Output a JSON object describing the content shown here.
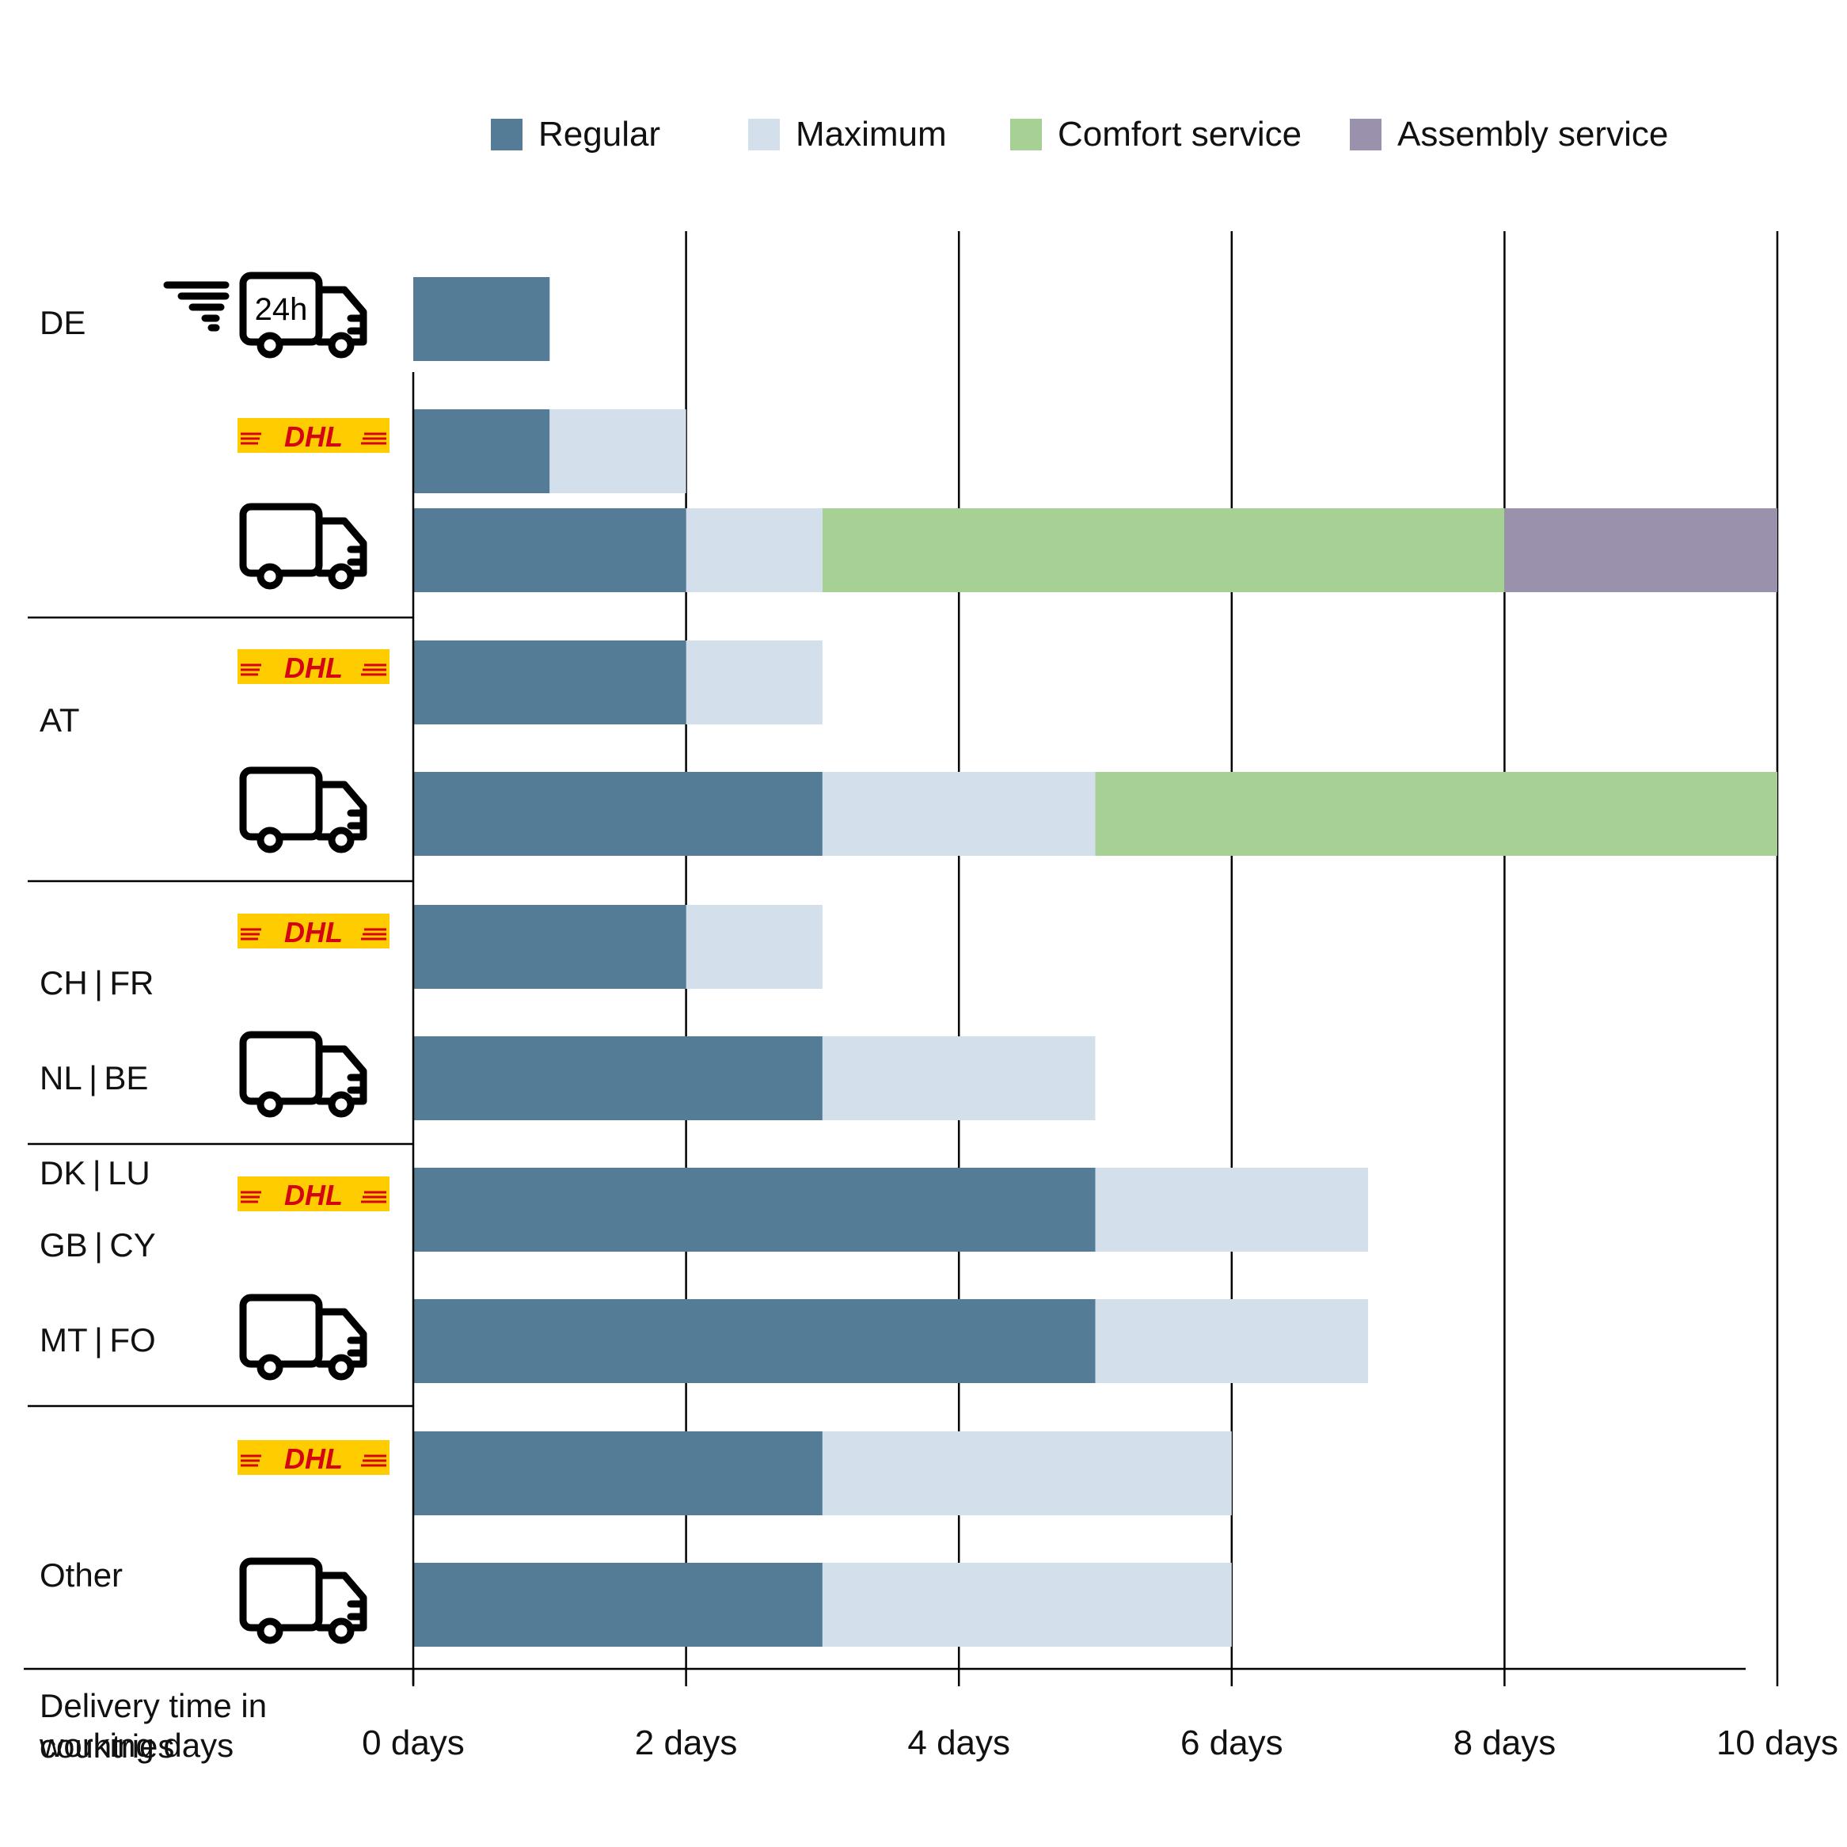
{
  "legend": {
    "regular": "Regular",
    "maximum": "Maximum",
    "comfort": "Comfort service",
    "assembly": "Assembly service"
  },
  "colors": {
    "regular": "#547c97",
    "maximum": "#d3e0ec",
    "comfort": "#a7d194",
    "assembly": "#9a91ad",
    "dhl_yellow": "#ffcc00",
    "dhl_red": "#d40511"
  },
  "groups": [
    {
      "label_lines": [
        "DE"
      ]
    },
    {
      "label_lines": [
        "AT"
      ]
    },
    {
      "label_lines": [
        "CH | FR",
        "NL | BE",
        "DK | LU"
      ]
    },
    {
      "label_lines": [
        "GB | CY",
        "MT | FO"
      ]
    },
    {
      "label_lines": [
        "Other",
        "countries"
      ]
    }
  ],
  "y_title_lines": [
    "Delivery time in",
    "working days"
  ],
  "truck_24h_label": "24h",
  "dhl_logo_text": "DHL",
  "chart_data": {
    "type": "bar",
    "orientation": "horizontal",
    "stacked": true,
    "xlabel": "Delivery time in working days",
    "xlim": [
      0,
      10
    ],
    "ticks": [
      0,
      2,
      4,
      6,
      8,
      10
    ],
    "tick_labels": [
      "0 days",
      "2 days",
      "4 days",
      "6 days",
      "8 days",
      "10 days"
    ],
    "grid": "vertical",
    "legend_position": "top",
    "rows": [
      {
        "group": "DE",
        "carrier": "24h truck",
        "icon": "truck-24h-icon",
        "regular": 1,
        "maximum": 0,
        "comfort": 0,
        "assembly": 0
      },
      {
        "group": "DE",
        "carrier": "DHL",
        "icon": "dhl-logo",
        "regular": 1,
        "maximum": 2,
        "comfort": 0,
        "assembly": 0
      },
      {
        "group": "DE",
        "carrier": "Truck",
        "icon": "truck-icon",
        "regular": 2,
        "maximum": 3,
        "comfort": 8,
        "assembly": 10
      },
      {
        "group": "AT",
        "carrier": "DHL",
        "icon": "dhl-logo",
        "regular": 2,
        "maximum": 3,
        "comfort": 0,
        "assembly": 0
      },
      {
        "group": "AT",
        "carrier": "Truck",
        "icon": "truck-icon",
        "regular": 3,
        "maximum": 5,
        "comfort": 10,
        "assembly": 0
      },
      {
        "group": "CH | FR | NL | BE | DK | LU",
        "carrier": "DHL",
        "icon": "dhl-logo",
        "regular": 2,
        "maximum": 3,
        "comfort": 0,
        "assembly": 0
      },
      {
        "group": "CH | FR | NL | BE | DK | LU",
        "carrier": "Truck",
        "icon": "truck-icon",
        "regular": 3,
        "maximum": 5,
        "comfort": 0,
        "assembly": 0
      },
      {
        "group": "GB | CY | MT | FO",
        "carrier": "DHL",
        "icon": "dhl-logo",
        "regular": 5,
        "maximum": 7,
        "comfort": 0,
        "assembly": 0
      },
      {
        "group": "GB | CY | MT | FO",
        "carrier": "Truck",
        "icon": "truck-icon",
        "regular": 5,
        "maximum": 7,
        "comfort": 0,
        "assembly": 0
      },
      {
        "group": "Other countries",
        "carrier": "DHL",
        "icon": "dhl-logo",
        "regular": 3,
        "maximum": 6,
        "comfort": 0,
        "assembly": 0
      },
      {
        "group": "Other countries",
        "carrier": "Truck",
        "icon": "truck-icon",
        "regular": 3,
        "maximum": 6,
        "comfort": 0,
        "assembly": 0
      }
    ],
    "value_note": "cumulative end points in days: regular, then maximum, comfort, assembly (0 = segment absent)"
  }
}
